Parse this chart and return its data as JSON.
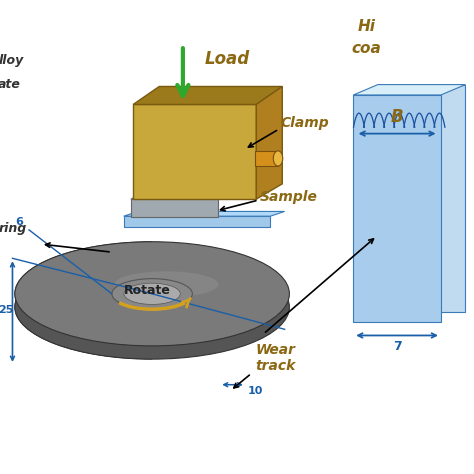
{
  "bg_color": "#ffffff",
  "label_color": "#8B6914",
  "green_arrow_color": "#2da82d",
  "disk_color": "#7a7a7a",
  "disk_shadow": "#555555",
  "clamp_color": "#c8a83a",
  "clamp_dark": "#9a7a1a",
  "sample_color": "#a0a8b0",
  "base_color": "#a0c8e8",
  "rotate_arrow_color": "#d4a020",
  "dim_arrow_color": "#1a5fa8",
  "labels": {
    "load": "Load",
    "clamp": "Clamp",
    "sample": "Sample",
    "ring": "ring",
    "alloy": "lloy",
    "ate": "ate",
    "rotate": "Rotate",
    "wear_track": "Wear\ntrack",
    "hi": "Hi",
    "coa": "coa",
    "B": "B",
    "dim6": "6",
    "dim25": "25",
    "dim10": "10",
    "dim7": "7"
  }
}
